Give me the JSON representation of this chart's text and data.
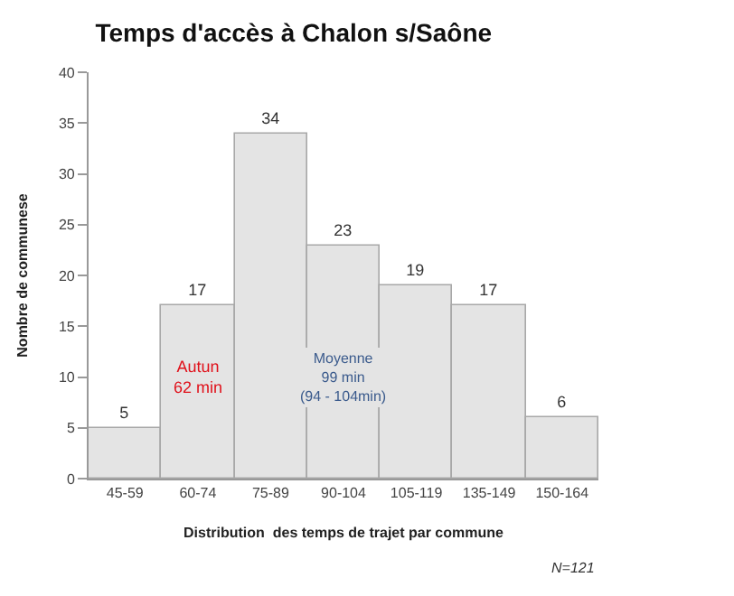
{
  "chart_data": {
    "type": "bar",
    "title": "Temps d'accès à Chalon s/Saône",
    "xlabel": "Distribution  des temps de trajet par commune",
    "ylabel": "Nombre de communese",
    "categories": [
      "45-59",
      "60-74",
      "75-89",
      "90-104",
      "105-119",
      "135-149",
      "150-164"
    ],
    "values": [
      5,
      17,
      34,
      23,
      19,
      17,
      6
    ],
    "color": "#e4e4e4",
    "ylim": [
      0,
      40
    ],
    "yticks": [
      0,
      5,
      10,
      15,
      20,
      25,
      30,
      35,
      40
    ],
    "data_labels": true,
    "annotations": [
      "Autun\n62 min",
      "Moyenne\n99 min\n(94 - 104min)",
      "N=121"
    ]
  }
}
